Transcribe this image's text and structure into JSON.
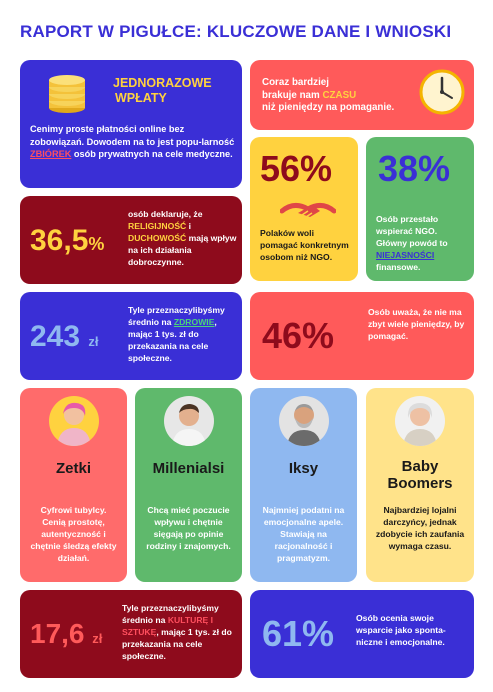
{
  "title": "RAPORT W PIGUŁCE: KLUCZOWE DANE I WNIOSKI",
  "colors": {
    "blue": "#3a2fd6",
    "red": "#ff5a5a",
    "maroon": "#8e0b1c",
    "yellow": "#ffd23f",
    "green": "#5fb96c",
    "pink": "#ff6b6b",
    "lightblue": "#8fb8f0",
    "cream": "#ffe38a"
  },
  "one_time": {
    "heading_line1": "JEDNORAZOWE",
    "heading_line2": "WPŁATY",
    "text_1": "Cenimy proste płatności online bez zobowiązań. Dowodem na to jest popu-larność ",
    "highlight": "ZBIÓREK",
    "text_2": " osób prywatnych na cele medyczne.",
    "icon": "coins-icon"
  },
  "time": {
    "text_1": "Coraz bardziej",
    "text_2": "brakuje nam ",
    "highlight": "CZASU",
    "text_3": "niż pieniędzy na pomaganie.",
    "icon": "clock-icon"
  },
  "stat_56": {
    "value": "56%",
    "text": "Polaków woli pomagać konkretnym osobom niż NGO.",
    "icon": "handshake-icon"
  },
  "stat_38": {
    "value": "38%",
    "text_1": "Osób przestało wspierać NGO. Główny powód to ",
    "highlight": "NIEJASNOŚCI",
    "text_2": " finansowe."
  },
  "stat_365": {
    "value": "36,5",
    "unit": "%",
    "text_1": "osób deklaruje, że ",
    "highlight_1": "RELIGIJNOŚĆ",
    "text_2": " i ",
    "highlight_2": "DUCHOWOŚĆ",
    "text_3": " mają wpływ na ich działania dobroczynne."
  },
  "stat_243": {
    "value": "243",
    "unit": "zł",
    "text_1": "Tyle przeznaczylibyśmy średnio na ",
    "highlight": "ZDROWIE",
    "text_2": ", mając 1 tys. zł do przekazania na cele społeczne."
  },
  "stat_46": {
    "value": "46%",
    "text": "Osób uważa, że nie ma zbyt wiele pieniędzy, by pomagać."
  },
  "generations": [
    {
      "name": "Zetki",
      "desc": "Cyfrowi tubylcy. Cenią prostotę, autentyczność i chętnie śledzą efekty działań."
    },
    {
      "name": "Millenialsi",
      "desc": "Chcą mieć poczucie wpływu i chętnie sięgają po opinie rodziny i znajomych."
    },
    {
      "name": "Iksy",
      "desc": "Najmniej podatni na emocjonalne apele. Stawiają na racjonalność i pragmatyzm."
    },
    {
      "name_1": "Baby",
      "name_2": "Boomers",
      "desc": "Najbardziej lojalni darczyńcy, jednak zdobycie ich zaufania wymaga czasu."
    }
  ],
  "stat_176": {
    "value": "17,6",
    "unit": "zł",
    "text_1": "Tyle przeznaczylibyśmy średnio na ",
    "highlight_1": "KULTURĘ",
    "text_2": " ",
    "highlight_2": "I SZTUKĘ",
    "text_3": ", mając 1 tys. zł do przekazania na cele społeczne."
  },
  "stat_61": {
    "value": "61%",
    "text": "Osób ocenia swoje wsparcie jako sponta-niczne i emocjonalne."
  }
}
